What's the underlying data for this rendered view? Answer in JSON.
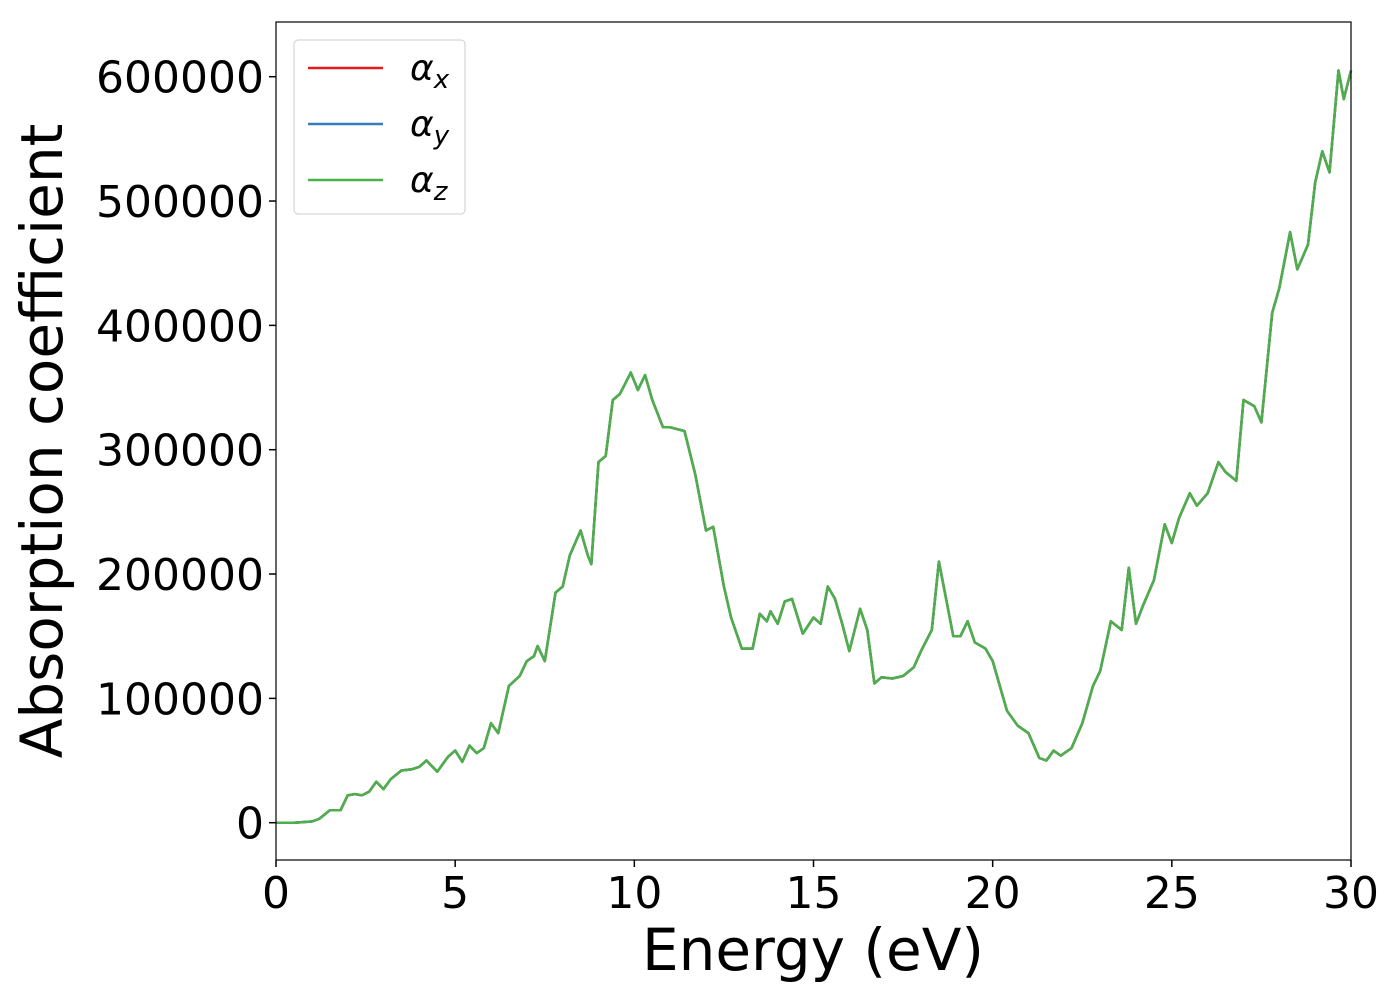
{
  "chart_data": {
    "type": "line",
    "xlabel": "Energy (eV)",
    "ylabel": "Absorption coefficient",
    "x": [
      0,
      0.5,
      1.0,
      1.2,
      1.5,
      1.8,
      2.0,
      2.2,
      2.4,
      2.6,
      2.8,
      3.0,
      3.2,
      3.5,
      3.8,
      4.0,
      4.2,
      4.5,
      4.8,
      5.0,
      5.2,
      5.4,
      5.6,
      5.8,
      6.0,
      6.2,
      6.5,
      6.8,
      7.0,
      7.2,
      7.3,
      7.5,
      7.8,
      8.0,
      8.2,
      8.5,
      8.7,
      8.8,
      9.0,
      9.2,
      9.4,
      9.6,
      9.9,
      10.1,
      10.3,
      10.5,
      10.8,
      11.0,
      11.4,
      11.7,
      12.0,
      12.2,
      12.5,
      12.7,
      13.0,
      13.3,
      13.5,
      13.7,
      13.8,
      14.0,
      14.2,
      14.4,
      14.7,
      15.0,
      15.2,
      15.4,
      15.6,
      15.8,
      16.0,
      16.3,
      16.5,
      16.7,
      16.9,
      17.2,
      17.5,
      17.8,
      18.0,
      18.3,
      18.5,
      18.7,
      18.9,
      19.1,
      19.3,
      19.5,
      19.8,
      20.0,
      20.2,
      20.4,
      20.7,
      21.0,
      21.3,
      21.5,
      21.7,
      21.9,
      22.2,
      22.5,
      22.8,
      23.0,
      23.3,
      23.6,
      23.8,
      24.0,
      24.2,
      24.5,
      24.8,
      25.0,
      25.2,
      25.5,
      25.7,
      26.0,
      26.3,
      26.5,
      26.8,
      27.0,
      27.3,
      27.5,
      27.8,
      28.0,
      28.3,
      28.5,
      28.8,
      29.0,
      29.2,
      29.4,
      29.65,
      29.8,
      30.0
    ],
    "series": [
      {
        "name": "αx",
        "color": "#e41a1c",
        "values": [
          0,
          0,
          1000,
          3000,
          10000,
          10000,
          22000,
          23000,
          22000,
          25000,
          33000,
          27000,
          35000,
          42000,
          43000,
          45000,
          50000,
          41000,
          53000,
          58000,
          49000,
          62000,
          56000,
          60000,
          80000,
          72000,
          110000,
          118000,
          130000,
          134000,
          142000,
          130000,
          185000,
          190000,
          215000,
          235000,
          215000,
          208000,
          290000,
          295000,
          340000,
          345000,
          362000,
          348000,
          360000,
          340000,
          318000,
          318000,
          315000,
          280000,
          235000,
          238000,
          190000,
          165000,
          140000,
          140000,
          168000,
          162000,
          170000,
          160000,
          178000,
          180000,
          152000,
          165000,
          160000,
          190000,
          180000,
          160000,
          138000,
          172000,
          155000,
          112000,
          117000,
          116000,
          118000,
          125000,
          138000,
          155000,
          210000,
          180000,
          150000,
          150000,
          162000,
          145000,
          140000,
          130000,
          110000,
          90000,
          78000,
          72000,
          52000,
          50000,
          58000,
          54000,
          60000,
          80000,
          110000,
          122000,
          162000,
          155000,
          205000,
          160000,
          175000,
          195000,
          240000,
          225000,
          245000,
          265000,
          255000,
          265000,
          290000,
          282000,
          275000,
          340000,
          335000,
          322000,
          410000,
          430000,
          475000,
          445000,
          465000,
          515000,
          540000,
          523000,
          605000,
          582000,
          605000
        ]
      },
      {
        "name": "αy",
        "color": "#377eb8",
        "values": [
          0,
          0,
          1000,
          3000,
          10000,
          10000,
          22000,
          23000,
          22000,
          25000,
          33000,
          27000,
          35000,
          42000,
          43000,
          45000,
          50000,
          41000,
          53000,
          58000,
          49000,
          62000,
          56000,
          60000,
          80000,
          72000,
          110000,
          118000,
          130000,
          134000,
          142000,
          130000,
          185000,
          190000,
          215000,
          235000,
          215000,
          208000,
          290000,
          295000,
          340000,
          345000,
          362000,
          348000,
          360000,
          340000,
          318000,
          318000,
          315000,
          280000,
          235000,
          238000,
          190000,
          165000,
          140000,
          140000,
          168000,
          162000,
          170000,
          160000,
          178000,
          180000,
          152000,
          165000,
          160000,
          190000,
          180000,
          160000,
          138000,
          172000,
          155000,
          112000,
          117000,
          116000,
          118000,
          125000,
          138000,
          155000,
          210000,
          180000,
          150000,
          150000,
          162000,
          145000,
          140000,
          130000,
          110000,
          90000,
          78000,
          72000,
          52000,
          50000,
          58000,
          54000,
          60000,
          80000,
          110000,
          122000,
          162000,
          155000,
          205000,
          160000,
          175000,
          195000,
          240000,
          225000,
          245000,
          265000,
          255000,
          265000,
          290000,
          282000,
          275000,
          340000,
          335000,
          322000,
          410000,
          430000,
          475000,
          445000,
          465000,
          515000,
          540000,
          523000,
          605000,
          582000,
          605000
        ]
      },
      {
        "name": "αz",
        "color": "#4daf4a",
        "values": [
          0,
          0,
          1000,
          3000,
          10000,
          10000,
          22000,
          23000,
          22000,
          25000,
          33000,
          27000,
          35000,
          42000,
          43000,
          45000,
          50000,
          41000,
          53000,
          58000,
          49000,
          62000,
          56000,
          60000,
          80000,
          72000,
          110000,
          118000,
          130000,
          134000,
          142000,
          130000,
          185000,
          190000,
          215000,
          235000,
          215000,
          208000,
          290000,
          295000,
          340000,
          345000,
          362000,
          348000,
          360000,
          340000,
          318000,
          318000,
          315000,
          280000,
          235000,
          238000,
          190000,
          165000,
          140000,
          140000,
          168000,
          162000,
          170000,
          160000,
          178000,
          180000,
          152000,
          165000,
          160000,
          190000,
          180000,
          160000,
          138000,
          172000,
          155000,
          112000,
          117000,
          116000,
          118000,
          125000,
          138000,
          155000,
          210000,
          180000,
          150000,
          150000,
          162000,
          145000,
          140000,
          130000,
          110000,
          90000,
          78000,
          72000,
          52000,
          50000,
          58000,
          54000,
          60000,
          80000,
          110000,
          122000,
          162000,
          155000,
          205000,
          160000,
          175000,
          195000,
          240000,
          225000,
          245000,
          265000,
          255000,
          265000,
          290000,
          282000,
          275000,
          340000,
          335000,
          322000,
          410000,
          430000,
          475000,
          445000,
          465000,
          515000,
          540000,
          523000,
          605000,
          582000,
          605000
        ]
      }
    ],
    "xlim": [
      0,
      30
    ],
    "xticks": [
      0,
      5,
      10,
      15,
      20,
      25,
      30
    ],
    "ylim": [
      -30000,
      644000
    ],
    "yticks": [
      0,
      100000,
      200000,
      300000,
      400000,
      500000,
      600000
    ],
    "legend": "upper left",
    "grid": false
  }
}
